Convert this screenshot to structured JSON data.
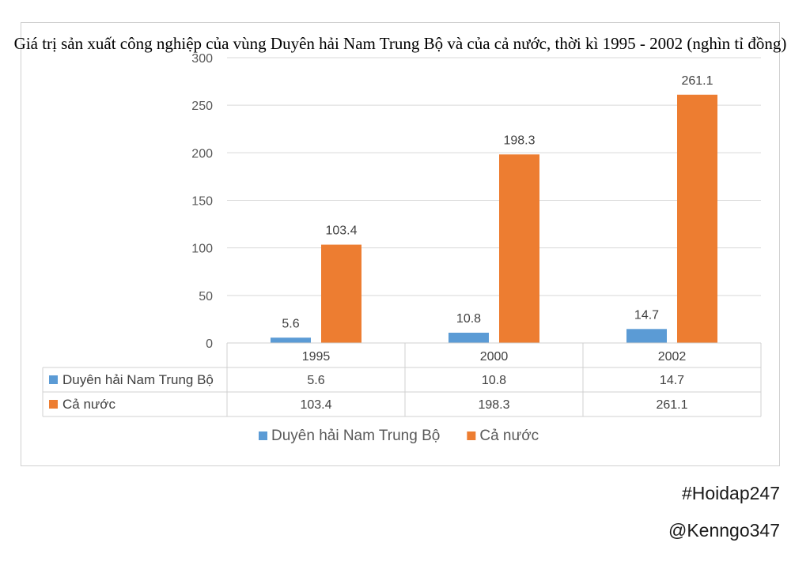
{
  "chart_data": {
    "type": "bar",
    "title": "Giá trị sản xuất công nghiệp của vùng Duyên hải Nam Trung Bộ và của cả nước, thời kì 1995 - 2002 (nghìn tỉ đồng)",
    "categories": [
      "1995",
      "2000",
      "2002"
    ],
    "series": [
      {
        "name": "Duyên hải Nam Trung Bộ",
        "values": [
          5.6,
          10.8,
          14.7
        ],
        "color": "#5b9bd5"
      },
      {
        "name": "Cả nước",
        "values": [
          103.4,
          198.3,
          261.1
        ],
        "color": "#ed7d31"
      }
    ],
    "ylim": [
      0,
      300
    ],
    "yticks": [
      0,
      50,
      100,
      150,
      200,
      250,
      300
    ],
    "grid": true,
    "data_table": true,
    "legend_position": "bottom"
  },
  "footer": {
    "hashtag": "#Hoidap247",
    "handle": "@Kenngo347"
  }
}
